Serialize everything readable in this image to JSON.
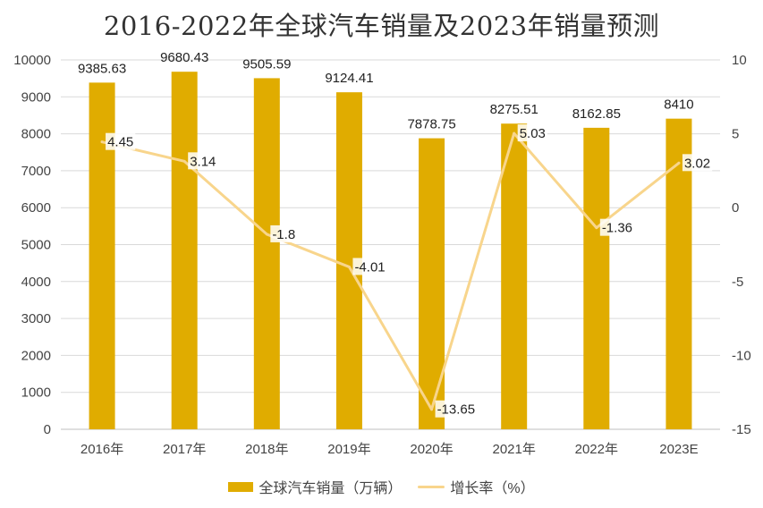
{
  "chart_data": {
    "type": "bar",
    "title": "2016-2022年全球汽车销量及2023年销量预测",
    "categories": [
      "2016年",
      "2017年",
      "2018年",
      "2019年",
      "2020年",
      "2021年",
      "2022年",
      "2023E"
    ],
    "series": [
      {
        "name": "全球汽车销量（万辆）",
        "type": "bar",
        "axis": "left",
        "values": [
          9385.63,
          9680.43,
          9505.59,
          9124.41,
          7878.75,
          8275.51,
          8162.85,
          8410
        ],
        "labels": [
          "9385.63",
          "9680.43",
          "9505.59",
          "9124.41",
          "7878.75",
          "8275.51",
          "8162.85",
          "8410"
        ]
      },
      {
        "name": "增长率（%）",
        "type": "line",
        "axis": "right",
        "values": [
          4.45,
          3.14,
          -1.8,
          -4.01,
          -13.65,
          5.03,
          -1.36,
          3.02
        ],
        "labels": [
          "4.45",
          "3.14",
          "-1.8",
          "-4.01",
          "-13.65",
          "5.03",
          "-1.36",
          "3.02"
        ]
      }
    ],
    "y_left": {
      "min": 0,
      "max": 10000,
      "ticks": [
        "0",
        "1000",
        "2000",
        "3000",
        "4000",
        "5000",
        "6000",
        "7000",
        "8000",
        "9000",
        "10000"
      ]
    },
    "y_right": {
      "min": -15,
      "max": 10,
      "ticks": [
        "-15",
        "-10",
        "-5",
        "0",
        "5",
        "10"
      ]
    },
    "grid": true,
    "legend_position": "bottom",
    "colors": {
      "bar": "#E0AC00",
      "line": "#F8D58C",
      "grid": "#D9D9D9",
      "axis": "#BFBFBF"
    }
  }
}
